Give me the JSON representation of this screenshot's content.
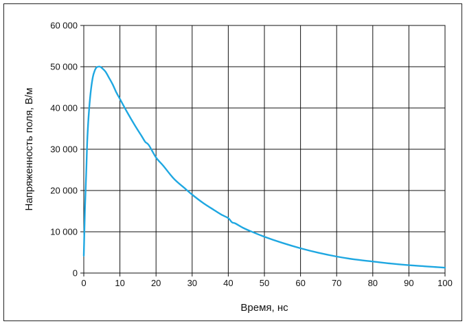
{
  "chart_data": {
    "type": "line",
    "xlabel": "Время, нс",
    "ylabel": "Напряженность поля, В/м",
    "xlim": [
      0,
      100
    ],
    "ylim": [
      0,
      60000
    ],
    "x_ticks": [
      0,
      10,
      20,
      30,
      40,
      50,
      60,
      70,
      80,
      90,
      100
    ],
    "y_ticks": [
      0,
      10000,
      20000,
      30000,
      40000,
      50000,
      60000
    ],
    "x_tick_labels": [
      "0",
      "10",
      "20",
      "30",
      "40",
      "50",
      "60",
      "70",
      "80",
      "90",
      "100"
    ],
    "y_tick_labels": [
      "0",
      "10 000",
      "20 000",
      "30 000",
      "40 000",
      "50 000",
      "60 000"
    ],
    "grid": true,
    "line_color": "#1ea7e1",
    "series": [
      {
        "x": [
          0,
          0.3,
          0.7,
          1,
          1.5,
          2,
          2.5,
          3,
          3.5,
          4,
          4.5,
          5,
          6,
          7,
          8,
          9,
          10,
          12,
          14,
          16,
          17,
          18,
          20,
          22,
          25,
          28,
          30,
          33,
          36,
          38,
          40,
          41,
          42,
          44,
          46,
          50,
          55,
          60,
          65,
          70,
          75,
          80,
          85,
          90,
          95,
          100
        ],
        "y": [
          4200,
          15000,
          25000,
          33000,
          40000,
          44500,
          47500,
          49000,
          49800,
          50000,
          50000,
          49700,
          48800,
          47300,
          45700,
          43800,
          42200,
          39000,
          36000,
          33200,
          31800,
          31000,
          28000,
          26000,
          22800,
          20500,
          19000,
          17000,
          15300,
          14200,
          13300,
          12300,
          12000,
          11000,
          10200,
          8800,
          7300,
          6000,
          4900,
          4000,
          3300,
          2800,
          2300,
          1900,
          1600,
          1300
        ]
      }
    ]
  }
}
